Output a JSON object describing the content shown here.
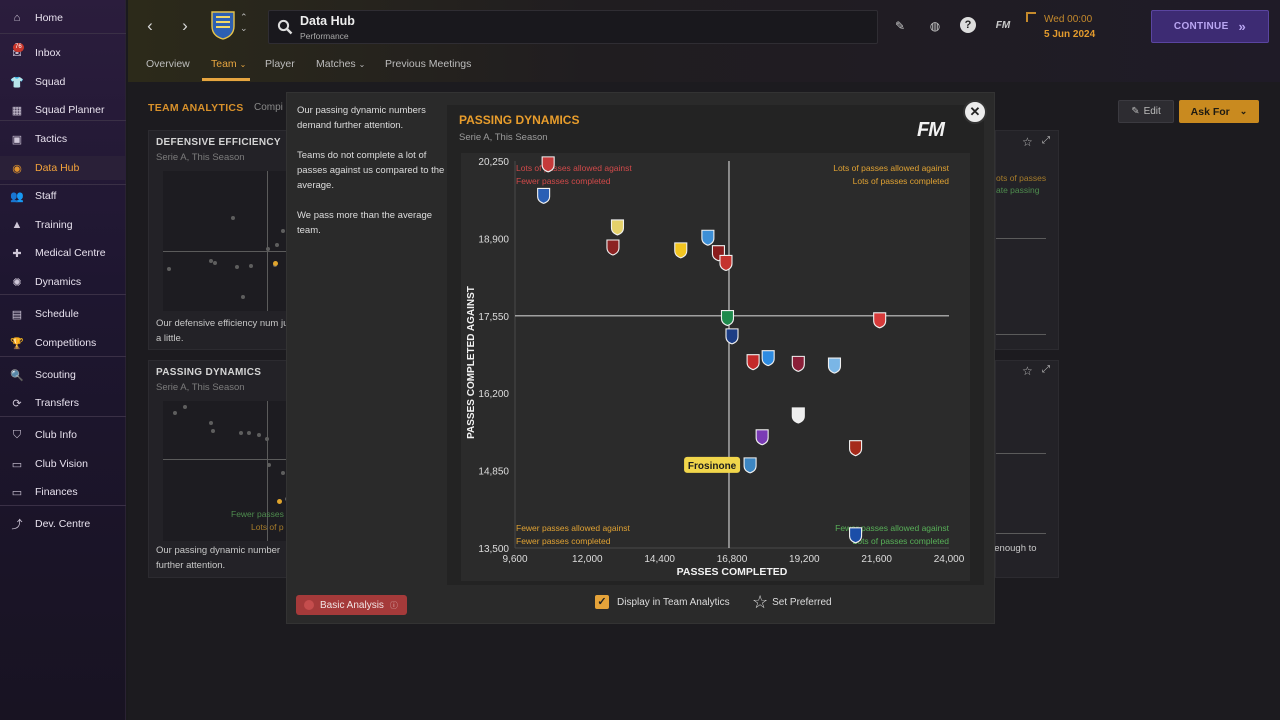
{
  "sidebar": {
    "items": [
      {
        "label": "Home",
        "icon": "home-icon",
        "glyph": "⌂"
      },
      {
        "label": "Inbox",
        "icon": "inbox-icon",
        "glyph": "✉",
        "badge": "76"
      },
      {
        "label": "Squad",
        "icon": "shirt-icon",
        "glyph": "👕"
      },
      {
        "label": "Squad Planner",
        "icon": "planner-icon",
        "glyph": "▦"
      },
      {
        "label": "Tactics",
        "icon": "tactics-icon",
        "glyph": "▣"
      },
      {
        "label": "Data Hub",
        "icon": "data-hub-icon",
        "glyph": "◉",
        "active": true
      },
      {
        "label": "Staff",
        "icon": "staff-icon",
        "glyph": "👥"
      },
      {
        "label": "Training",
        "icon": "training-icon",
        "glyph": "▲"
      },
      {
        "label": "Medical Centre",
        "icon": "medical-icon",
        "glyph": "✚"
      },
      {
        "label": "Dynamics",
        "icon": "dynamics-icon",
        "glyph": "✺"
      },
      {
        "label": "Schedule",
        "icon": "schedule-icon",
        "glyph": "▤"
      },
      {
        "label": "Competitions",
        "icon": "trophy-icon",
        "glyph": "🏆"
      },
      {
        "label": "Scouting",
        "icon": "scouting-icon",
        "glyph": "🔍"
      },
      {
        "label": "Transfers",
        "icon": "transfers-icon",
        "glyph": "⟳"
      },
      {
        "label": "Club Info",
        "icon": "shield-icon",
        "glyph": "⛉"
      },
      {
        "label": "Club Vision",
        "icon": "vision-icon",
        "glyph": "▭"
      },
      {
        "label": "Finances",
        "icon": "finances-icon",
        "glyph": "▭"
      },
      {
        "label": "Dev. Centre",
        "icon": "dev-centre-icon",
        "glyph": "⤴"
      }
    ]
  },
  "header": {
    "title": "Data Hub",
    "subtitle": "Performance",
    "date_line1": "Wed 00:00",
    "date_line2": "5 Jun 2024",
    "continue_label": "CONTINUE",
    "fm_label": "FM"
  },
  "subtabs": [
    "Overview",
    "Team",
    "Player",
    "Matches",
    "Previous Meetings"
  ],
  "team_analytics": {
    "title": "TEAM ANALYTICS",
    "comp_label": "Compi",
    "edit_label": "Edit",
    "askfor_label": "Ask For"
  },
  "cards": {
    "defensive": {
      "title": "DEFENSIVE EFFICIENCY",
      "sub": "Serie A, This Season",
      "desc": "Our defensive efficiency num just a little."
    },
    "passing": {
      "title": "PASSING DYNAMICS",
      "sub": "Serie A, This Season",
      "desc": "Our passing dynamic number further attention.",
      "bl_q1": "Fewer passes",
      "bl_q2": "Lots of p"
    },
    "right_top": {
      "q1": "ots of passes",
      "q2": "ate passing"
    },
    "right_bottom": {
      "desc": "t enough to"
    }
  },
  "modal": {
    "paragraphs": [
      "Our passing dynamic numbers demand further attention.",
      "Teams do not complete a lot of passes against us compared to the average.",
      "We pass more than the average team."
    ],
    "basic_analysis_label": "Basic Analysis",
    "display_label": "Display in Team Analytics",
    "set_preferred_label": "Set Preferred",
    "fm_logo": "FM"
  },
  "chart_data": {
    "type": "scatter",
    "title": "PASSING DYNAMICS",
    "subtitle": "Serie A, This Season",
    "xlabel": "PASSES COMPLETED",
    "ylabel": "PASSES COMPLETED AGAINST",
    "xlim": [
      9600,
      24000
    ],
    "ylim": [
      13500,
      20250
    ],
    "xticks": [
      "9,600",
      "12,000",
      "14,400",
      "16,800",
      "19,200",
      "21,600",
      "24,000"
    ],
    "yticks": [
      "20,250",
      "18,900",
      "17,550",
      "16,200",
      "14,850",
      "13,500"
    ],
    "avg_x": 16700,
    "avg_y": 17550,
    "highlight_label": "Frosinone",
    "quadrants": {
      "tl": [
        "Lots of passes allowed against",
        "Fewer passes completed"
      ],
      "tr": [
        "Lots of passes allowed against",
        "Lots of passes completed"
      ],
      "bl": [
        "Fewer passes allowed against",
        "Fewer passes completed"
      ],
      "br": [
        "Fewer passes allowed against",
        "Lots of passes completed"
      ]
    },
    "points": [
      {
        "x": 10700,
        "y": 20200,
        "color": "#c53a3a"
      },
      {
        "x": 10550,
        "y": 19650,
        "color": "#2a5fb5"
      },
      {
        "x": 13000,
        "y": 19100,
        "color": "#e5d16a"
      },
      {
        "x": 12850,
        "y": 18750,
        "color": "#8c2323"
      },
      {
        "x": 15100,
        "y": 18700,
        "color": "#f2c521"
      },
      {
        "x": 16000,
        "y": 18920,
        "color": "#3d8fd6"
      },
      {
        "x": 16350,
        "y": 18650,
        "color": "#8a1c1c"
      },
      {
        "x": 16600,
        "y": 18480,
        "color": "#c4332d"
      },
      {
        "x": 16650,
        "y": 17520,
        "color": "#1e8a4c"
      },
      {
        "x": 16800,
        "y": 17200,
        "color": "#1c3d85"
      },
      {
        "x": 17500,
        "y": 16750,
        "color": "#c42a2a"
      },
      {
        "x": 18000,
        "y": 16820,
        "color": "#2e8be0"
      },
      {
        "x": 19000,
        "y": 16720,
        "color": "#8a1f38"
      },
      {
        "x": 20200,
        "y": 16690,
        "color": "#7ab6e6"
      },
      {
        "x": 21700,
        "y": 17480,
        "color": "#d63a3a"
      },
      {
        "x": 19000,
        "y": 15820,
        "color": "#eeeeee"
      },
      {
        "x": 17800,
        "y": 15440,
        "color": "#7a3bb5"
      },
      {
        "x": 17400,
        "y": 14950,
        "color": "#3c86c2",
        "highlight": true
      },
      {
        "x": 20900,
        "y": 15250,
        "color": "#a52a1a"
      },
      {
        "x": 20900,
        "y": 13730,
        "color": "#1b4ea8"
      }
    ]
  }
}
